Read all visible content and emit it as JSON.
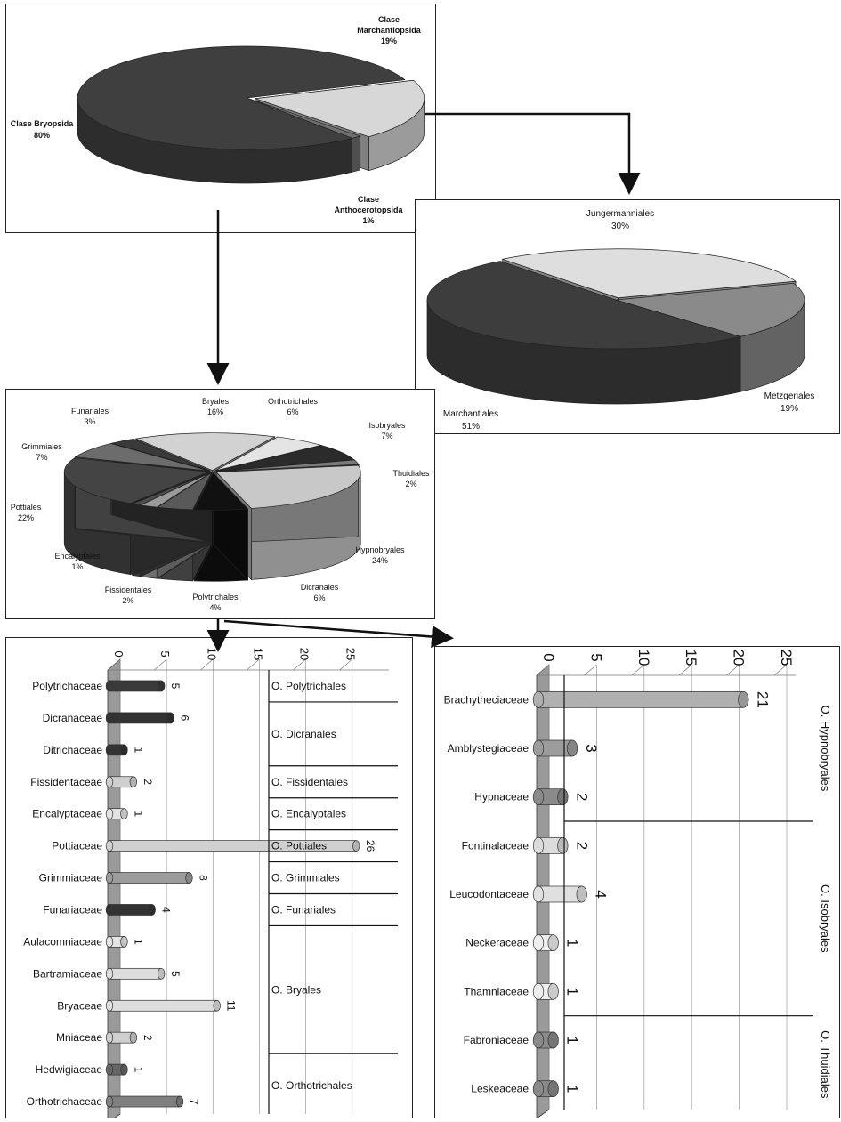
{
  "chart_data": [
    {
      "type": "pie",
      "slices": [
        {
          "label_line1": "Clase",
          "label_line2": "Marchantiopsida",
          "pct_label": "19%",
          "value": 19,
          "color": "#d7d7d7"
        },
        {
          "label_line1": "Clase",
          "label_line2": "Anthocerotopsida",
          "pct_label": "1%",
          "value": 1,
          "color": "#6f6f6f"
        },
        {
          "label_line1": "Clase Bryopsida",
          "label_line2": "",
          "pct_label": "80%",
          "value": 80,
          "color": "#3f3f3f"
        }
      ]
    },
    {
      "type": "pie",
      "slices": [
        {
          "label": "Jungermanniales",
          "pct_label": "30%",
          "value": 30,
          "color": "#dedede"
        },
        {
          "label": "Metzgeriales",
          "pct_label": "19%",
          "value": 19,
          "color": "#8a8a8a"
        },
        {
          "label": "Marchantiales",
          "pct_label": "51%",
          "value": 51,
          "color": "#3d3d3d"
        }
      ]
    },
    {
      "type": "pie",
      "slices": [
        {
          "label": "Bryales",
          "pct_label": "16%",
          "value": 16,
          "color": "#d2d2d2"
        },
        {
          "label": "Orthotrichales",
          "pct_label": "6%",
          "value": 6,
          "color": "#e4e4e4"
        },
        {
          "label": "Isobryales",
          "pct_label": "7%",
          "value": 7,
          "color": "#2b2b2b"
        },
        {
          "label": "Thuidiales",
          "pct_label": "2%",
          "value": 2,
          "color": "#7a7a7a"
        },
        {
          "label": "Hypnobryales",
          "pct_label": "24%",
          "value": 24,
          "color": "#c8c8c8"
        },
        {
          "label": "Dicranales",
          "pct_label": "6%",
          "value": 6,
          "color": "#111111"
        },
        {
          "label": "Polytrichales",
          "pct_label": "4%",
          "value": 4,
          "color": "#595959"
        },
        {
          "label": "Fissidentales",
          "pct_label": "2%",
          "value": 2,
          "color": "#9a9a9a"
        },
        {
          "label": "Encalyptales",
          "pct_label": "1%",
          "value": 1,
          "color": "#4d4d4d"
        },
        {
          "label": "Pottiales",
          "pct_label": "22%",
          "value": 22,
          "color": "#444444"
        },
        {
          "label": "Grimmiales",
          "pct_label": "7%",
          "value": 7,
          "color": "#6c6c6c"
        },
        {
          "label": "Funariales",
          "pct_label": "3%",
          "value": 3,
          "color": "#3a3a3a"
        }
      ]
    },
    {
      "type": "bar",
      "orientation": "horizontal",
      "ticks": [
        "0",
        "5",
        "10",
        "15",
        "20",
        "25"
      ],
      "xlim": [
        0,
        28
      ],
      "categories": [
        "Polytrichaceae",
        "Dicranaceae",
        "Ditrichaceae",
        "Fissidentaceae",
        "Encalyptaceae",
        "Pottiaceae",
        "Grimmiaceae",
        "Funariaceae",
        "Aulacomniaceae",
        "Bartramiaceae",
        "Bryaceae",
        "Mniaceae",
        "Hedwigiaceae",
        "Orthotrichaceae"
      ],
      "values": [
        5,
        6,
        1,
        2,
        1,
        26,
        8,
        4,
        1,
        5,
        11,
        2,
        1,
        7
      ],
      "colors": [
        "#3a3a3a",
        "#333333",
        "#333333",
        "#cfcfcf",
        "#e3e3e3",
        "#d0d0d0",
        "#9c9c9c",
        "#333333",
        "#e3e3e3",
        "#dedede",
        "#dedede",
        "#cfcfcf",
        "#666666",
        "#808080"
      ],
      "groups": [
        {
          "label": "O. Polytrichales",
          "start": 0,
          "end": 0
        },
        {
          "label": "O. Dicranales",
          "start": 1,
          "end": 2
        },
        {
          "label": "O. Fissidentales",
          "start": 3,
          "end": 3
        },
        {
          "label": "O. Encalyptales",
          "start": 4,
          "end": 4
        },
        {
          "label": "O. Pottiales",
          "start": 5,
          "end": 5
        },
        {
          "label": "O. Grimmiales",
          "start": 6,
          "end": 6
        },
        {
          "label": "O. Funariales",
          "start": 7,
          "end": 7
        },
        {
          "label": "O. Bryales",
          "start": 8,
          "end": 11
        },
        {
          "label": "O. Orthotrichales",
          "start": 12,
          "end": 13
        }
      ]
    },
    {
      "type": "bar",
      "orientation": "horizontal",
      "ticks": [
        "0",
        "5",
        "10",
        "15",
        "20",
        "25"
      ],
      "xlim": [
        0,
        25
      ],
      "categories": [
        "Brachytheciaceae",
        "Amblystegiaceae",
        "Hypnaceae",
        "Fontinalaceae",
        "Leucodontaceae",
        "Neckeraceae",
        "Thamniaceae",
        "Fabroniaceae",
        "Leskeaceae"
      ],
      "values": [
        21,
        3,
        2,
        2,
        4,
        1,
        1,
        1,
        1
      ],
      "colors": [
        "#b0b0b0",
        "#9c9c9c",
        "#8a8a8a",
        "#dcdcdc",
        "#e0e0e0",
        "#eeeeee",
        "#eeeeee",
        "#8a8a8a",
        "#8a8a8a"
      ],
      "groups": [
        {
          "label": "O. Hypnobryales",
          "start": 0,
          "end": 2
        },
        {
          "label": "O. Isobryales",
          "start": 3,
          "end": 6
        },
        {
          "label": "O. Thuidiales",
          "start": 7,
          "end": 8
        }
      ]
    }
  ]
}
